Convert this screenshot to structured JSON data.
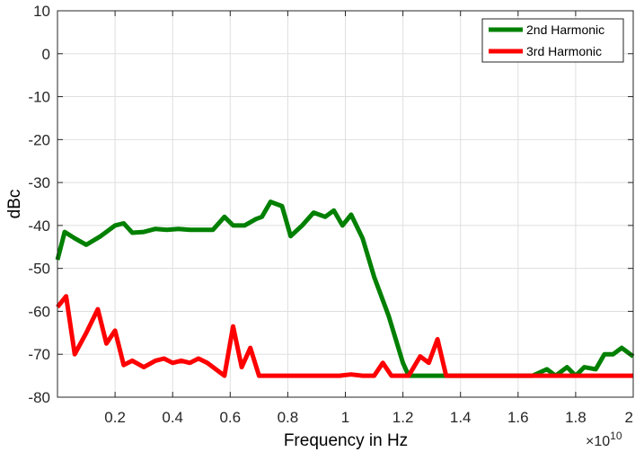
{
  "chart_data": {
    "type": "line",
    "xlabel": "Frequency in Hz",
    "ylabel": "dBc",
    "xlim": [
      0,
      20000000000.0
    ],
    "ylim": [
      -80,
      10
    ],
    "x_tick_labels": [
      "0.2",
      "0.4",
      "0.6",
      "0.8",
      "1",
      "1.2",
      "1.4",
      "1.6",
      "1.8",
      "2"
    ],
    "x_tick_values": [
      2000000000.0,
      4000000000.0,
      6000000000.0,
      8000000000.0,
      10000000000.0,
      12000000000.0,
      14000000000.0,
      16000000000.0,
      18000000000.0,
      20000000000.0
    ],
    "y_tick_values": [
      -80,
      -70,
      -60,
      -50,
      -40,
      -30,
      -20,
      -10,
      0,
      10
    ],
    "x_multiplier_label": "×10",
    "x_multiplier_exponent": "10",
    "grid": true,
    "legend_position": "top-right",
    "series": [
      {
        "name": "2nd Harmonic",
        "color": "#008000",
        "x": [
          0,
          250000000.0,
          600000000.0,
          1000000000.0,
          1500000000.0,
          2000000000.0,
          2300000000.0,
          2600000000.0,
          3000000000.0,
          3400000000.0,
          3800000000.0,
          4200000000.0,
          4600000000.0,
          5000000000.0,
          5400000000.0,
          5800000000.0,
          6100000000.0,
          6500000000.0,
          6900000000.0,
          7100000000.0,
          7400000000.0,
          7800000000.0,
          8100000000.0,
          8500000000.0,
          8900000000.0,
          9300000000.0,
          9600000000.0,
          9900000000.0,
          10200000000.0,
          10600000000.0,
          11000000000.0,
          11500000000.0,
          12000000000.0,
          12200000000.0,
          13500000000.0,
          15000000000.0,
          16500000000.0,
          17000000000.0,
          17300000000.0,
          17700000000.0,
          18000000000.0,
          18300000000.0,
          18700000000.0,
          19000000000.0,
          19300000000.0,
          19600000000.0,
          20000000000.0
        ],
        "y": [
          -48,
          -41.5,
          -43,
          -44.5,
          -42.5,
          -40,
          -39.5,
          -41.7,
          -41.5,
          -40.8,
          -41,
          -40.8,
          -41,
          -41,
          -41,
          -38,
          -40,
          -40,
          -38.5,
          -38,
          -34.5,
          -35.5,
          -42.5,
          -40,
          -37,
          -38,
          -36.5,
          -40,
          -37.5,
          -43,
          -52,
          -61,
          -72,
          -75,
          -75,
          -75,
          -75,
          -73.5,
          -75,
          -73,
          -75,
          -73,
          -73.5,
          -70,
          -70,
          -68.5,
          -70.5
        ]
      },
      {
        "name": "3rd Harmonic",
        "color": "#ff0000",
        "x": [
          0,
          300000000.0,
          600000000.0,
          1000000000.0,
          1400000000.0,
          1700000000.0,
          2000000000.0,
          2300000000.0,
          2600000000.0,
          3000000000.0,
          3400000000.0,
          3700000000.0,
          4000000000.0,
          4300000000.0,
          4600000000.0,
          4900000000.0,
          5200000000.0,
          5800000000.0,
          6100000000.0,
          6400000000.0,
          6700000000.0,
          7000000000.0,
          8000000000.0,
          9000000000.0,
          9800000000.0,
          10200000000.0,
          10600000000.0,
          11000000000.0,
          11300000000.0,
          11600000000.0,
          12000000000.0,
          12200000000.0,
          12600000000.0,
          12900000000.0,
          13200000000.0,
          13500000000.0,
          15000000000.0,
          18000000000.0,
          20000000000.0
        ],
        "y": [
          -59,
          -56.5,
          -70,
          -65,
          -59.5,
          -67.5,
          -64.5,
          -72.5,
          -71.5,
          -73,
          -71.5,
          -71,
          -72,
          -71.5,
          -72,
          -71,
          -72,
          -75,
          -63.5,
          -73,
          -68.5,
          -75,
          -75,
          -75,
          -75,
          -74.7,
          -75,
          -75,
          -72,
          -75,
          -75,
          -75,
          -70.5,
          -72,
          -66.5,
          -75,
          -75,
          -75,
          -75
        ]
      }
    ]
  }
}
